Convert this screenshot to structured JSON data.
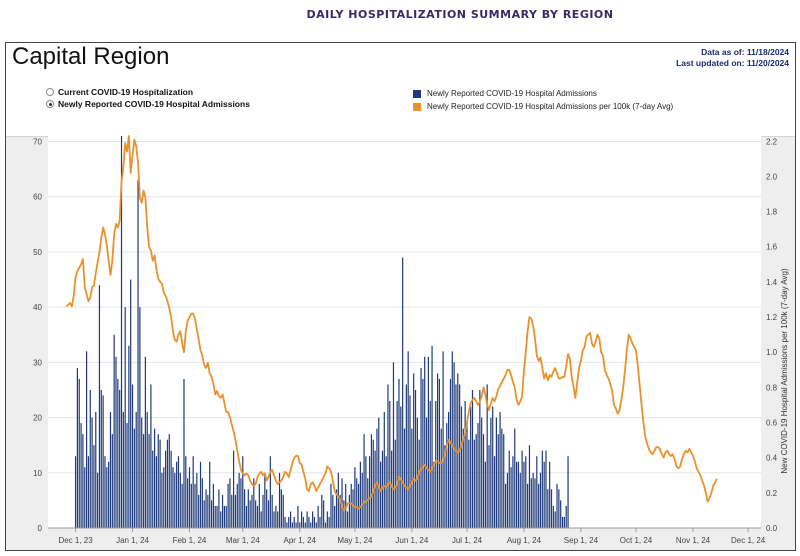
{
  "page": {
    "header": "DAILY HOSPITALIZATION SUMMARY BY REGION"
  },
  "panel": {
    "region_title": "Capital Region",
    "data_as_of": "Data as of: 11/18/2024",
    "last_updated": "Last updated on: 11/20/2024"
  },
  "radios": [
    {
      "label": "Current COVID-19 Hospitalization",
      "checked": false
    },
    {
      "label": "Newly Reported COVID-19 Hospital Admissions",
      "checked": true
    }
  ],
  "legend": [
    {
      "label": "Newly Reported COVID-19 Hospital Admissions",
      "color": "#1f3a7a"
    },
    {
      "label": "Newly Reported COVID-19 Hospital Admissions per 100k (7-day Avg)",
      "color": "#e8922e"
    }
  ],
  "chart_data": {
    "type": "bar",
    "x_tick_labels": [
      "Dec 1, 23",
      "Jan 1, 24",
      "Feb 1, 24",
      "Mar 1, 24",
      "Apr 1, 24",
      "May 1, 24",
      "Jun 1, 24",
      "Jul 1, 24",
      "Aug 1, 24",
      "Sep 1, 24",
      "Oct 1, 24",
      "Nov 1, 24",
      "Dec 1, 24"
    ],
    "y_left": {
      "ticks": [
        0,
        10,
        20,
        30,
        40,
        50,
        60,
        70
      ],
      "range": [
        0,
        71
      ]
    },
    "y_right": {
      "label": "New COVID-19 Hospital Admissions per 100k (7-day Avg)",
      "ticks": [
        "0.0",
        "0.2",
        "0.4",
        "0.6",
        "0.8",
        "1.0",
        "1.2",
        "1.4",
        "1.6",
        "1.8",
        "2.0",
        "2.2"
      ],
      "range": [
        0,
        2.23
      ]
    },
    "grid": true,
    "series": [
      {
        "name": "Newly Reported COVID-19 Hospital Admissions",
        "axis": "left",
        "start_date": "2023-12-01",
        "values": [
          13,
          29,
          27,
          19,
          17,
          11,
          32,
          13,
          25,
          20,
          15,
          21,
          10,
          44,
          25,
          24,
          13,
          11,
          12,
          21,
          17,
          35,
          31,
          27,
          25,
          71,
          21,
          40,
          19,
          33,
          45,
          26,
          18,
          21,
          63,
          40,
          20,
          17,
          31,
          21,
          17,
          26,
          14,
          18,
          13,
          17,
          16,
          10,
          11,
          14,
          16,
          17,
          14,
          11,
          10,
          12,
          13,
          10,
          8,
          27,
          13,
          9,
          11,
          8,
          13,
          8,
          10,
          6,
          12,
          9,
          5,
          7,
          6,
          12,
          5,
          8,
          4,
          4,
          7,
          3,
          6,
          4,
          4,
          8,
          9,
          6,
          14,
          6,
          8,
          10,
          9,
          13,
          7,
          4,
          7,
          5,
          6,
          9,
          5,
          4,
          8,
          3,
          6,
          10,
          7,
          5,
          13,
          6,
          3,
          4,
          3,
          10,
          7,
          6,
          2,
          1,
          2,
          3,
          1,
          2,
          1,
          4,
          1,
          3,
          2,
          1,
          3,
          2,
          1,
          3,
          2,
          1,
          4,
          2,
          6,
          5,
          1,
          3,
          2,
          8,
          6,
          4,
          7,
          10,
          6,
          9,
          5,
          8,
          3,
          6,
          8,
          7,
          11,
          9,
          8,
          12,
          10,
          17,
          13,
          9,
          13,
          17,
          16,
          14,
          18,
          20,
          12,
          14,
          21,
          13,
          26,
          23,
          14,
          30,
          16,
          23,
          27,
          22,
          49,
          18,
          26,
          32,
          24,
          18,
          28,
          25,
          20,
          16,
          29,
          27,
          31,
          20,
          31,
          23,
          33,
          12,
          23,
          28,
          27,
          18,
          32,
          15,
          19,
          21,
          27,
          32,
          30,
          26,
          28,
          26,
          22,
          18,
          23,
          19,
          16,
          22,
          25,
          16,
          17,
          19,
          25,
          20,
          17,
          12,
          26,
          15,
          20,
          22,
          13,
          20,
          17,
          21,
          18,
          17,
          8,
          10,
          14,
          11,
          13,
          18,
          12,
          12,
          10,
          14,
          12,
          13,
          8,
          15,
          9,
          10,
          9,
          13,
          8,
          10,
          14,
          12,
          14,
          7,
          12,
          7,
          4,
          3,
          8,
          7,
          5,
          2,
          2,
          4,
          13
        ]
      },
      {
        "name": "Newly Reported COVID-19 Hospital Admissions per 100k (7-day Avg)",
        "axis": "right",
        "start_date": "2023-11-26",
        "values": [
          1.26,
          1.27,
          1.28,
          1.26,
          1.32,
          1.43,
          1.46,
          1.48,
          1.5,
          1.53,
          1.37,
          1.33,
          1.29,
          1.31,
          1.37,
          1.38,
          1.45,
          1.51,
          1.57,
          1.65,
          1.71,
          1.67,
          1.61,
          1.52,
          1.44,
          1.52,
          1.67,
          1.73,
          1.71,
          1.75,
          1.97,
          2.05,
          2.19,
          2.14,
          2.23,
          2.02,
          2.12,
          2.21,
          2.17,
          2.08,
          1.88,
          1.85,
          1.92,
          1.88,
          1.71,
          1.6,
          1.58,
          1.52,
          1.55,
          1.47,
          1.42,
          1.4,
          1.39,
          1.34,
          1.32,
          1.29,
          1.25,
          1.2,
          1.12,
          1.07,
          1.06,
          1.1,
          1.12,
          1.05,
          1.0,
          1.12,
          1.18,
          1.2,
          1.22,
          1.22,
          1.19,
          1.13,
          1.07,
          1.01,
          0.98,
          0.93,
          0.91,
          0.94,
          0.88,
          0.86,
          0.82,
          0.76,
          0.78,
          0.75,
          0.74,
          0.76,
          0.71,
          0.66,
          0.66,
          0.63,
          0.59,
          0.55,
          0.5,
          0.44,
          0.38,
          0.33,
          0.31,
          0.3,
          0.31,
          0.3,
          0.27,
          0.25,
          0.24,
          0.25,
          0.29,
          0.31,
          0.32,
          0.3,
          0.31,
          0.27,
          0.29,
          0.32,
          0.33,
          0.3,
          0.27,
          0.25,
          0.26,
          0.27,
          0.29,
          0.32,
          0.31,
          0.29,
          0.33,
          0.37,
          0.4,
          0.41,
          0.41,
          0.37,
          0.36,
          0.32,
          0.28,
          0.22,
          0.21,
          0.25,
          0.26,
          0.24,
          0.21,
          0.23,
          0.25,
          0.27,
          0.29,
          0.31,
          0.35,
          0.34,
          0.32,
          0.27,
          0.21,
          0.19,
          0.18,
          0.16,
          0.12,
          0.1,
          0.11,
          0.14,
          0.14,
          0.14,
          0.13,
          0.12,
          0.12,
          0.11,
          0.12,
          0.13,
          0.15,
          0.15,
          0.16,
          0.17,
          0.18,
          0.21,
          0.24,
          0.26,
          0.23,
          0.21,
          0.23,
          0.24,
          0.23,
          0.25,
          0.26,
          0.24,
          0.22,
          0.23,
          0.25,
          0.29,
          0.28,
          0.26,
          0.24,
          0.23,
          0.22,
          0.24,
          0.26,
          0.28,
          0.27,
          0.28,
          0.32,
          0.33,
          0.35,
          0.36,
          0.34,
          0.33,
          0.32,
          0.34,
          0.36,
          0.38,
          0.38,
          0.37,
          0.37,
          0.38,
          0.42,
          0.47,
          0.5,
          0.49,
          0.47,
          0.45,
          0.44,
          0.43,
          0.44,
          0.47,
          0.51,
          0.54,
          0.6,
          0.66,
          0.71,
          0.73,
          0.74,
          0.72,
          0.7,
          0.72,
          0.75,
          0.8,
          0.76,
          0.7,
          0.67,
          0.71,
          0.74,
          0.72,
          0.75,
          0.79,
          0.81,
          0.83,
          0.85,
          0.87,
          0.9,
          0.9,
          0.87,
          0.83,
          0.8,
          0.73,
          0.7,
          0.72,
          0.75,
          0.9,
          1.0,
          1.12,
          1.2,
          1.19,
          1.15,
          1.08,
          0.98,
          0.95,
          0.97,
          0.91,
          0.85,
          0.88,
          0.84,
          0.87,
          0.86,
          0.89,
          0.91,
          0.88,
          0.85,
          0.85,
          0.86,
          0.86,
          0.92,
          0.99,
          0.96,
          0.86,
          0.8,
          0.74,
          0.83,
          0.91,
          0.95,
          1.01,
          1.03,
          1.09,
          1.1,
          1.11,
          1.05,
          1.03,
          1.06,
          1.1,
          1.08,
          1.0,
          0.98,
          0.9,
          0.87,
          0.85,
          0.82,
          0.78,
          0.7,
          0.68,
          0.65,
          0.67,
          0.73,
          0.8,
          0.9,
          1.01,
          1.1,
          1.08,
          1.05,
          1.03,
          1.01,
          0.92,
          0.81,
          0.7,
          0.6,
          0.52,
          0.48,
          0.45,
          0.43,
          0.42,
          0.44,
          0.46,
          0.46,
          0.45,
          0.42,
          0.4,
          0.43,
          0.44,
          0.42,
          0.41,
          0.42,
          0.39,
          0.35,
          0.34,
          0.35,
          0.39,
          0.42,
          0.44,
          0.43,
          0.45,
          0.43,
          0.41,
          0.38,
          0.34,
          0.32,
          0.3,
          0.27,
          0.24,
          0.2,
          0.15,
          0.17,
          0.2,
          0.24,
          0.26,
          0.28
        ]
      }
    ]
  }
}
